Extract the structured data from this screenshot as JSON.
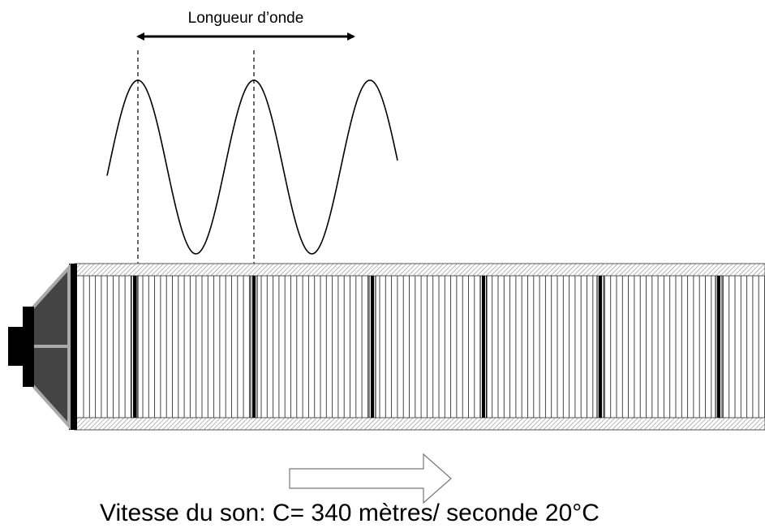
{
  "labels": {
    "wavelength": "Longueur d’onde",
    "speed": "Vitesse du son: C= 340 mètres/ seconde 20°C"
  }
}
